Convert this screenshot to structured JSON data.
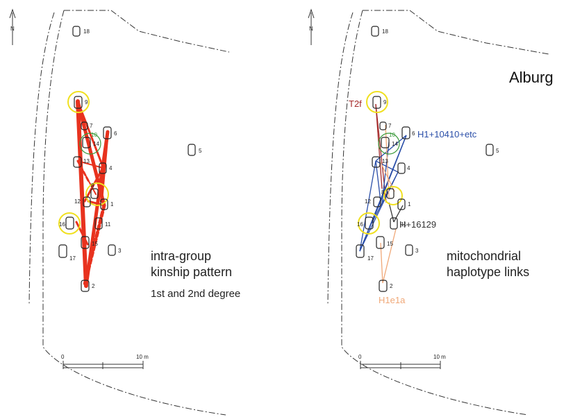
{
  "site_title": "Alburg",
  "left_panel": {
    "caption_line1": "intra-group",
    "caption_line2": "kinship pattern",
    "caption_line3": "1st and 2nd degree"
  },
  "right_panel": {
    "caption_line1": "mitochondrial",
    "caption_line2": "haplotype links",
    "haplotypes": [
      {
        "label": "T2f",
        "color": "#a52a2a"
      },
      {
        "label": "H1+10410+etc",
        "color": "#2a4ea8"
      },
      {
        "label": "H+16129",
        "color": "#333333"
      },
      {
        "label": "H1e1a",
        "color": "#f0a878"
      }
    ]
  },
  "north_label": "N",
  "scale": {
    "start": "0",
    "end": "10 m"
  },
  "graves": [
    "18",
    "9",
    "7",
    "10",
    "14",
    "6",
    "13",
    "4",
    "5",
    "8",
    "12",
    "1",
    "16",
    "11",
    "15",
    "17",
    "3",
    "2"
  ],
  "colors": {
    "kinship": "#e8321e",
    "highlight_yellow": "#f0e020",
    "highlight_green": "#3a9a3a"
  }
}
